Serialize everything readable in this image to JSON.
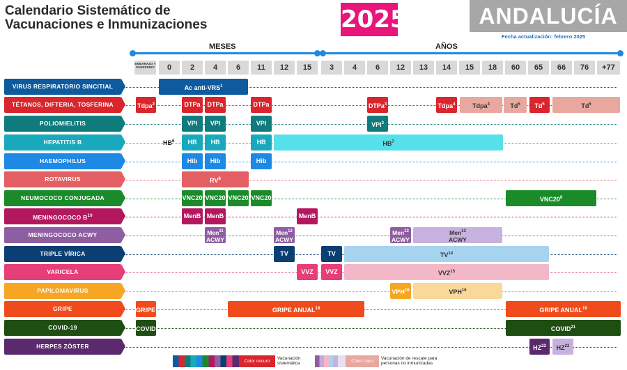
{
  "header": {
    "title_line1": "Calendario Sistemático de",
    "title_line2": "Vacunaciones e Inmunizaciones",
    "year": "2025",
    "region": "ANDALUCÍA",
    "updated": "Fecha actualización: febrero 2025"
  },
  "axis": {
    "months_label": "MESES",
    "years_label": "AÑOS"
  },
  "ages": [
    "EMBARAZO Y PUERPERIO",
    "0",
    "2",
    "4",
    "6",
    "11",
    "12",
    "15",
    "3",
    "4",
    "6",
    "12",
    "13",
    "14",
    "15",
    "18",
    "60",
    "65",
    "66",
    "76",
    "+77"
  ],
  "rows": [
    {
      "label": "VIRUS RESPIRATORIO SINCITIAL",
      "color": "#0e5a9e"
    },
    {
      "label": "TÉTANOS, DIFTERIA, TOSFERINA",
      "color": "#d9252b"
    },
    {
      "label": "POLIOMIELITIS",
      "color": "#0f7b7d"
    },
    {
      "label": "HEPATITIS B",
      "color": "#18a9bd"
    },
    {
      "label": "HAEMOPHILUS",
      "color": "#1e88e5"
    },
    {
      "label": "ROTAVIRUS",
      "color": "#e45f63"
    },
    {
      "label": "NEUMOCOCO CONJUGADA",
      "color": "#1b8b2a"
    },
    {
      "label": "MENINGOCOCO B",
      "color": "#b3185f"
    },
    {
      "label": "MENINGOCOCO ACWY",
      "color": "#8e5ea2"
    },
    {
      "label": "TRIPLE VÍRICA",
      "color": "#0b3f73"
    },
    {
      "label": "VARICELA",
      "color": "#e83e77"
    },
    {
      "label": "PAPILOMAVIRUS",
      "color": "#f6a623"
    },
    {
      "label": "GRIPE",
      "color": "#f04b1c"
    },
    {
      "label": "COVID-19",
      "color": "#1f4e12"
    },
    {
      "label": "HERPES ZÓSTER",
      "color": "#5b2a6e"
    }
  ],
  "row_label_sups": {
    "meningococo_b": "10"
  },
  "cells": [
    {
      "text": "Ac anti-VRS",
      "sup": "1"
    },
    {
      "text": "Tdpa",
      "sup": "2"
    },
    {
      "text": "DTPa"
    },
    {
      "text": "DTPa"
    },
    {
      "text": "DTPa"
    },
    {
      "text": "DTPa",
      "sup": "3"
    },
    {
      "text": "Tdpa",
      "sup": "4"
    },
    {
      "text": "Tdpa",
      "sup": "4"
    },
    {
      "text": "Td",
      "sup": "5"
    },
    {
      "text": "Td",
      "sup": "5"
    },
    {
      "text": "Td",
      "sup": "5"
    },
    {
      "text": "VPI"
    },
    {
      "text": "VPI"
    },
    {
      "text": "VPI"
    },
    {
      "text": "VPI",
      "sup": "3"
    },
    {
      "text": "HB"
    },
    {
      "text": "HB"
    },
    {
      "text": "HB"
    },
    {
      "text": "HB",
      "sup": "7"
    },
    {
      "text": "Hib"
    },
    {
      "text": "Hib"
    },
    {
      "text": "Hib"
    },
    {
      "text": "RV",
      "sup": "8"
    },
    {
      "text": "VNC20"
    },
    {
      "text": "VNC20"
    },
    {
      "text": "VNC20"
    },
    {
      "text": "VNC20"
    },
    {
      "text": "VNC20",
      "sup": "9"
    },
    {
      "text": "MenB"
    },
    {
      "text": "MenB"
    },
    {
      "text": "MenB"
    },
    {
      "text": "Men",
      "text2": "ACWY",
      "sup": "11"
    },
    {
      "text": "Men",
      "text2": "ACWY",
      "sup": "12"
    },
    {
      "text": "Men",
      "text2": "ACWY",
      "sup": "13"
    },
    {
      "text": "Men",
      "text2": "ACWY",
      "sup": "13"
    },
    {
      "text": "TV"
    },
    {
      "text": "TV"
    },
    {
      "text": "TV",
      "sup": "14"
    },
    {
      "text": "VVZ"
    },
    {
      "text": "VVZ"
    },
    {
      "text": "VVZ",
      "sup": "15"
    },
    {
      "text": "VPH",
      "sup": "16"
    },
    {
      "text": "VPH",
      "sup": "16"
    },
    {
      "text": "GRIPE",
      "sup": "17"
    },
    {
      "text": "GRIPE ANUAL",
      "sup": "18"
    },
    {
      "text": "GRIPE ANUAL",
      "sup": "19"
    },
    {
      "text": "COVID",
      "sup": "20"
    },
    {
      "text": "COVID",
      "sup": "21"
    },
    {
      "text": "HZ",
      "sup": "22"
    },
    {
      "text": "HZ",
      "sup": "22"
    }
  ],
  "hb_birth": {
    "text": "HB",
    "sup": "6"
  },
  "legend": {
    "dark_label": "Color oscuro",
    "dark_text1": "Vacunación",
    "dark_text2": "sistemática",
    "light_label": "Color claro",
    "light_text1": "Vacunación de rescate para",
    "light_text2": "personas no inmunizadas"
  }
}
